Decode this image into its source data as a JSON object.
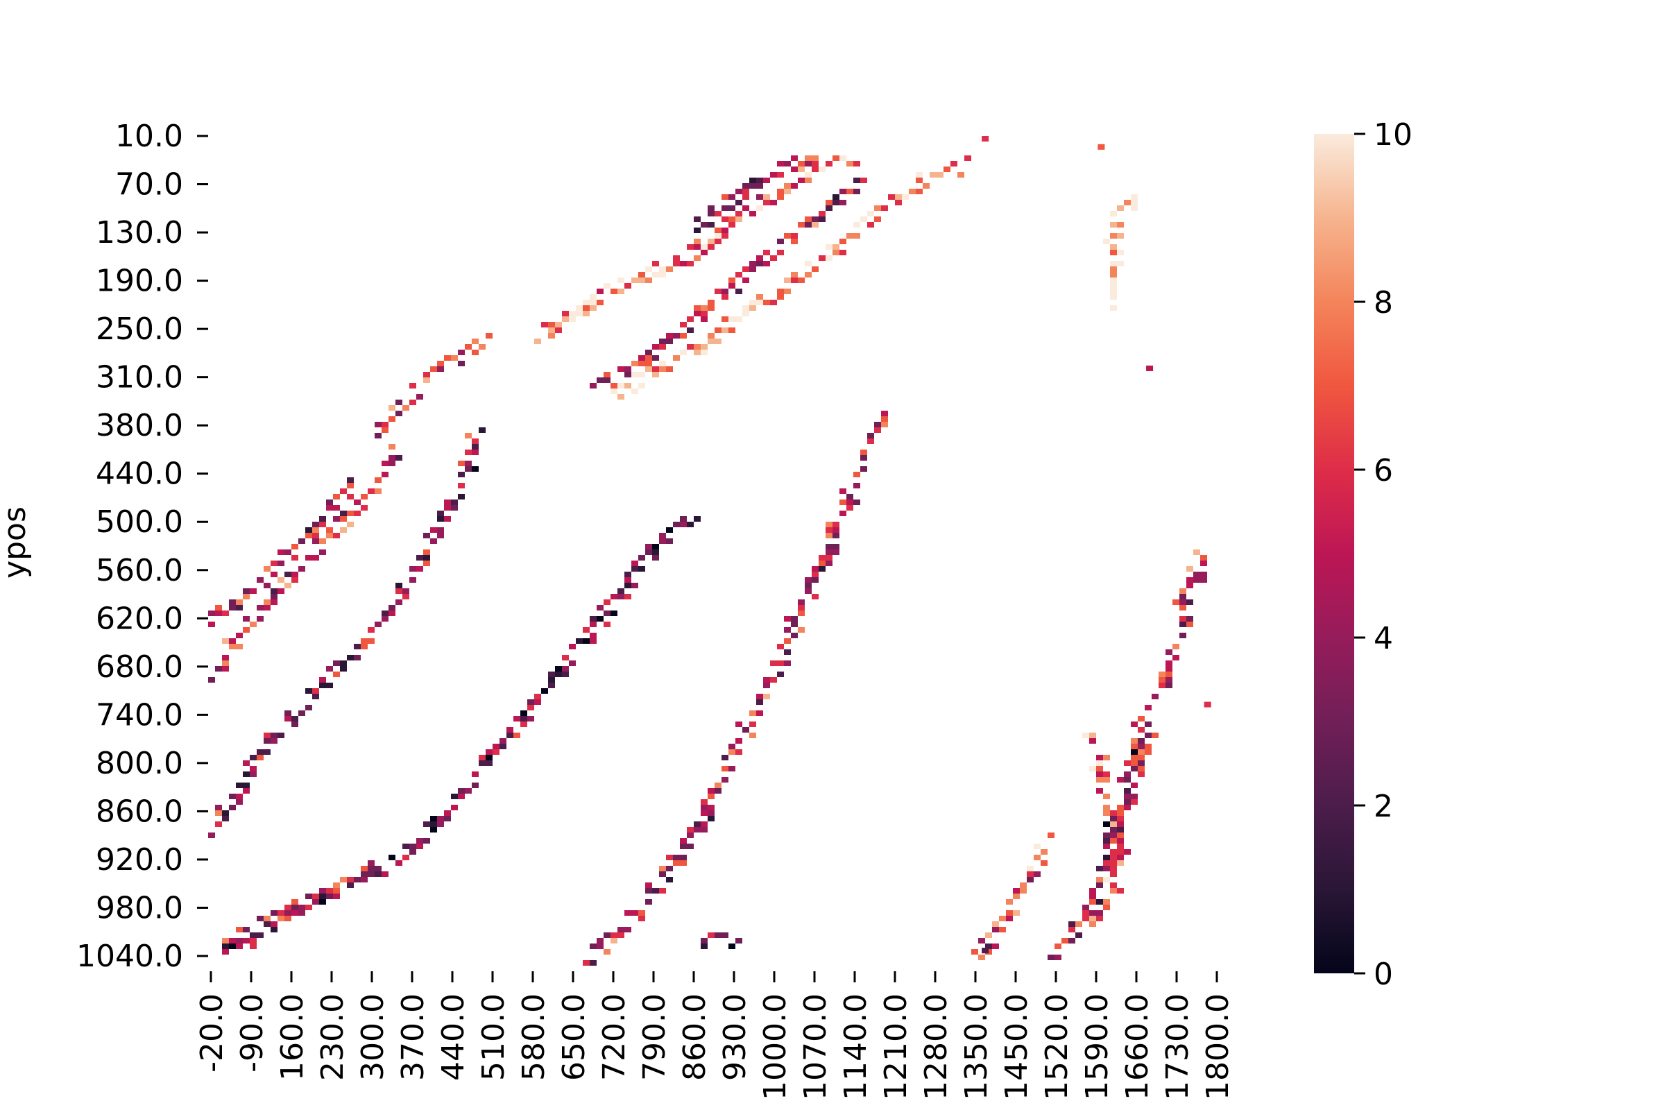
{
  "chart_data": {
    "type": "heatmap",
    "title": "",
    "xlabel": "",
    "ylabel": "ypos",
    "y_ticks": [
      "10.0",
      "70.0",
      "130.0",
      "190.0",
      "250.0",
      "310.0",
      "380.0",
      "440.0",
      "500.0",
      "560.0",
      "620.0",
      "680.0",
      "740.0",
      "800.0",
      "860.0",
      "920.0",
      "980.0",
      "1040.0"
    ],
    "x_ticks": [
      "-20.0",
      "-90.0",
      "160.0",
      "230.0",
      "300.0",
      "370.0",
      "440.0",
      "510.0",
      "580.0",
      "650.0",
      "720.0",
      "790.0",
      "860.0",
      "930.0",
      "1000.0",
      "1070.0",
      "1140.0",
      "1210.0",
      "1280.0",
      "1350.0",
      "1450.0",
      "1520.0",
      "1590.0",
      "1660.0",
      "1730.0",
      "1800.0"
    ],
    "colorbar": {
      "min": 0,
      "max": 10,
      "ticks": [
        "0",
        "2",
        "4",
        "6",
        "8",
        "10"
      ],
      "colormap": "rocket"
    },
    "grid": false,
    "traces": [
      {
        "points": [
          [
            0.0,
            0.59
          ],
          [
            0.04,
            0.55
          ],
          [
            0.07,
            0.52
          ],
          [
            0.1,
            0.48
          ],
          [
            0.13,
            0.44
          ],
          [
            0.15,
            0.42
          ]
        ],
        "level": 5
      },
      {
        "points": [
          [
            0.0,
            0.65
          ],
          [
            0.03,
            0.6
          ],
          [
            0.07,
            0.55
          ],
          [
            0.11,
            0.5
          ],
          [
            0.15,
            0.45
          ],
          [
            0.18,
            0.41
          ],
          [
            0.19,
            0.37
          ]
        ],
        "level": 6
      },
      {
        "points": [
          [
            0.0,
            0.84
          ],
          [
            0.04,
            0.77
          ],
          [
            0.08,
            0.71
          ],
          [
            0.12,
            0.66
          ],
          [
            0.16,
            0.61
          ],
          [
            0.2,
            0.55
          ],
          [
            0.23,
            0.48
          ],
          [
            0.26,
            0.42
          ],
          [
            0.28,
            0.34
          ]
        ],
        "level": 4
      },
      {
        "points": [
          [
            0.02,
            0.99
          ],
          [
            0.06,
            0.96
          ],
          [
            0.1,
            0.93
          ],
          [
            0.14,
            0.91
          ],
          [
            0.18,
            0.89
          ],
          [
            0.22,
            0.85
          ],
          [
            0.26,
            0.8
          ],
          [
            0.3,
            0.74
          ],
          [
            0.34,
            0.68
          ],
          [
            0.38,
            0.62
          ],
          [
            0.42,
            0.56
          ],
          [
            0.46,
            0.5
          ],
          [
            0.5,
            0.46
          ]
        ],
        "level": 3
      },
      {
        "points": [
          [
            0.02,
            0.98
          ],
          [
            0.07,
            0.95
          ],
          [
            0.12,
            0.92
          ],
          [
            0.17,
            0.88
          ]
        ],
        "level": 5
      },
      {
        "points": [
          [
            0.17,
            0.36
          ],
          [
            0.2,
            0.32
          ],
          [
            0.24,
            0.28
          ],
          [
            0.29,
            0.24
          ]
        ],
        "level": 6
      },
      {
        "points": [
          [
            0.34,
            0.24
          ],
          [
            0.38,
            0.21
          ],
          [
            0.42,
            0.18
          ],
          [
            0.46,
            0.16
          ],
          [
            0.5,
            0.14
          ],
          [
            0.54,
            0.1
          ],
          [
            0.58,
            0.07
          ],
          [
            0.62,
            0.04
          ],
          [
            0.67,
            0.02
          ]
        ],
        "level": 8
      },
      {
        "points": [
          [
            0.4,
            0.3
          ],
          [
            0.44,
            0.28
          ],
          [
            0.48,
            0.24
          ],
          [
            0.52,
            0.2
          ],
          [
            0.56,
            0.16
          ],
          [
            0.6,
            0.12
          ],
          [
            0.64,
            0.08
          ],
          [
            0.68,
            0.05
          ]
        ],
        "level": 5
      },
      {
        "points": [
          [
            0.42,
            0.31
          ],
          [
            0.46,
            0.28
          ],
          [
            0.5,
            0.26
          ],
          [
            0.54,
            0.22
          ],
          [
            0.58,
            0.19
          ],
          [
            0.62,
            0.16
          ],
          [
            0.66,
            0.12
          ],
          [
            0.7,
            0.08
          ],
          [
            0.74,
            0.05
          ],
          [
            0.79,
            0.03
          ]
        ],
        "level": 9
      },
      {
        "points": [
          [
            0.5,
            0.11
          ],
          [
            0.53,
            0.08
          ],
          [
            0.56,
            0.06
          ],
          [
            0.59,
            0.04
          ],
          [
            0.62,
            0.02
          ]
        ],
        "level": 4
      },
      {
        "points": [
          [
            0.39,
            1.0
          ],
          [
            0.42,
            0.97
          ],
          [
            0.45,
            0.93
          ],
          [
            0.48,
            0.88
          ],
          [
            0.51,
            0.82
          ],
          [
            0.54,
            0.75
          ],
          [
            0.57,
            0.68
          ],
          [
            0.6,
            0.6
          ],
          [
            0.63,
            0.52
          ],
          [
            0.66,
            0.44
          ],
          [
            0.68,
            0.37
          ],
          [
            0.7,
            0.33
          ]
        ],
        "level": 5
      },
      {
        "points": [
          [
            0.51,
            0.98
          ],
          [
            0.55,
            0.98
          ]
        ],
        "level": 3
      },
      {
        "points": [
          [
            0.79,
            1.0
          ],
          [
            0.81,
            0.97
          ],
          [
            0.83,
            0.93
          ],
          [
            0.85,
            0.9
          ],
          [
            0.87,
            0.85
          ]
        ],
        "level": 6
      },
      {
        "points": [
          [
            0.87,
            1.0
          ],
          [
            0.89,
            0.97
          ],
          [
            0.91,
            0.94
          ],
          [
            0.93,
            0.88
          ],
          [
            0.94,
            0.83
          ],
          [
            0.95,
            0.77
          ],
          [
            0.96,
            0.72
          ],
          [
            0.98,
            0.67
          ],
          [
            1.0,
            0.61
          ],
          [
            1.01,
            0.55
          ],
          [
            1.03,
            0.5
          ]
        ],
        "level": 5
      },
      {
        "points": [
          [
            0.91,
            0.96
          ],
          [
            0.93,
            0.92
          ],
          [
            0.94,
            0.87
          ],
          [
            0.93,
            0.82
          ],
          [
            0.92,
            0.77
          ],
          [
            0.91,
            0.72
          ]
        ],
        "level": 7
      },
      {
        "points": [
          [
            0.92,
            0.88
          ],
          [
            0.94,
            0.82
          ],
          [
            0.96,
            0.77
          ],
          [
            0.97,
            0.72
          ]
        ],
        "level": 4
      },
      {
        "points": [
          [
            0.93,
            0.21
          ],
          [
            0.93,
            0.15
          ],
          [
            0.94,
            0.1
          ],
          [
            0.96,
            0.06
          ]
        ],
        "level": 10
      }
    ],
    "isolated_cells": [
      {
        "x": 0.97,
        "y": 0.28,
        "level": 5
      },
      {
        "x": 1.03,
        "y": 0.69,
        "level": 6
      },
      {
        "x": 0.92,
        "y": 0.01,
        "level": 7
      },
      {
        "x": 0.8,
        "y": 0.0,
        "level": 6
      },
      {
        "x": 0.8,
        "y": 0.99,
        "level": 2
      }
    ]
  }
}
